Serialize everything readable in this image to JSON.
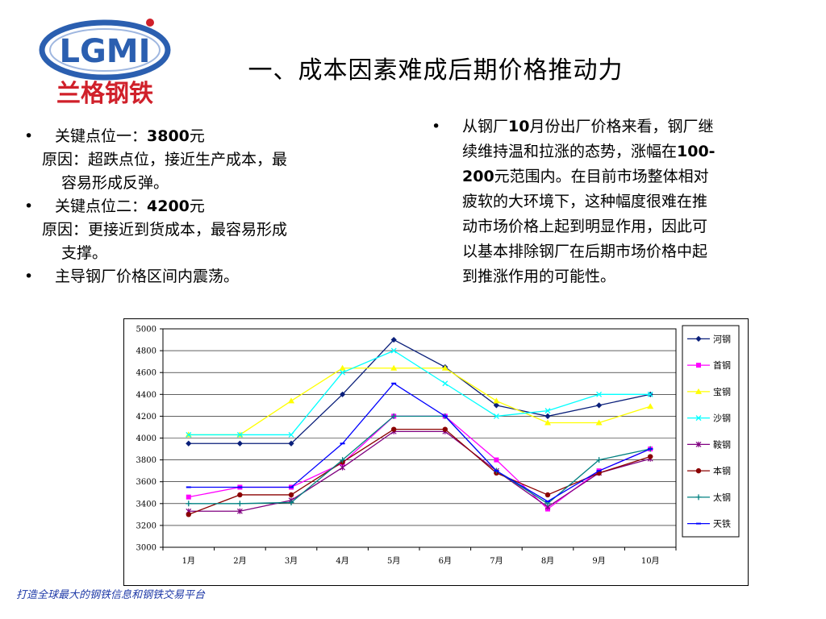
{
  "logo": {
    "mark_text": "LGMI",
    "brand_text": "兰格钢铁",
    "colors": {
      "blue": "#2b5fb0",
      "red": "#d0202a"
    }
  },
  "title": "一、成本因素难成后期价格推动力",
  "left_points": {
    "bullet": "•",
    "p1_label": "关键点位一：",
    "p1_value": "3800",
    "p1_unit": "元",
    "p1_reason_a": "原因：超跌点位，接近生产成本，最",
    "p1_reason_b": "容易形成反弹。",
    "p2_label": "关键点位二：",
    "p2_value": "4200",
    "p2_unit": "元",
    "p2_reason_a": "原因：更接近到货成本，最容易形成",
    "p2_reason_b": "支撑。",
    "p3": "主导钢厂价格区间内震荡。"
  },
  "right_point": {
    "bullet": "•",
    "line1_a": "从钢厂",
    "line1_b": "10",
    "line1_c": "月份出厂价格来看，钢厂继",
    "line2_a": "续维持温和拉涨的态势，涨幅在",
    "line2_b": "100-",
    "line3_a": "200",
    "line3_b": "元范围内。在目前市场整体相对",
    "line4": "疲软的大环境下，这种幅度很难在推",
    "line5": "动市场价格上起到明显作用，因此可",
    "line6": "以基本排除钢厂在后期市场价格中起",
    "line7": "到推涨作用的可能性。"
  },
  "footer": "打造全球最大的钢铁信息和钢铁交易平台",
  "chart_data": {
    "type": "line",
    "categories": [
      "1月",
      "2月",
      "3月",
      "4月",
      "5月",
      "6月",
      "7月",
      "8月",
      "9月",
      "10月"
    ],
    "ylim": [
      3000,
      5000
    ],
    "ytick_step": 200,
    "yticks": [
      "3000",
      "3200",
      "3400",
      "3600",
      "3800",
      "4000",
      "4200",
      "4400",
      "4600",
      "4800",
      "5000"
    ],
    "grid": "horizontal",
    "legend": "right",
    "series": [
      {
        "name": "河钢",
        "color": "#0a1f7a",
        "marker": "diamond",
        "values": [
          3950,
          3950,
          3950,
          4400,
          4900,
          4650,
          4300,
          4200,
          4300,
          4400
        ]
      },
      {
        "name": "首钢",
        "color": "#ff00ff",
        "marker": "square",
        "values": [
          3460,
          3550,
          3550,
          3770,
          4200,
          4200,
          3800,
          3350,
          3700,
          3900
        ]
      },
      {
        "name": "宝钢",
        "color": "#ffff00",
        "marker": "triangle",
        "values": [
          4030,
          4030,
          4340,
          4640,
          4640,
          4640,
          4340,
          4140,
          4140,
          4290
        ]
      },
      {
        "name": "沙钢",
        "color": "#00ffff",
        "marker": "x",
        "values": [
          4030,
          4030,
          4030,
          4600,
          4800,
          4500,
          4200,
          4250,
          4400,
          4400
        ]
      },
      {
        "name": "鞍钢",
        "color": "#800080",
        "marker": "star",
        "values": [
          3330,
          3330,
          3430,
          3730,
          4060,
          4060,
          3700,
          3370,
          3680,
          3810
        ]
      },
      {
        "name": "本钢",
        "color": "#8b0000",
        "marker": "circle",
        "values": [
          3300,
          3480,
          3480,
          3780,
          4080,
          4080,
          3680,
          3480,
          3680,
          3830
        ]
      },
      {
        "name": "太钢",
        "color": "#008080",
        "marker": "plus",
        "values": [
          3400,
          3400,
          3410,
          3800,
          4200,
          4200,
          3700,
          3400,
          3800,
          3900
        ]
      },
      {
        "name": "天铁",
        "color": "#0000ff",
        "marker": "dash",
        "values": [
          3550,
          3550,
          3550,
          3950,
          4500,
          4200,
          3700,
          3420,
          3700,
          3900
        ]
      }
    ]
  }
}
